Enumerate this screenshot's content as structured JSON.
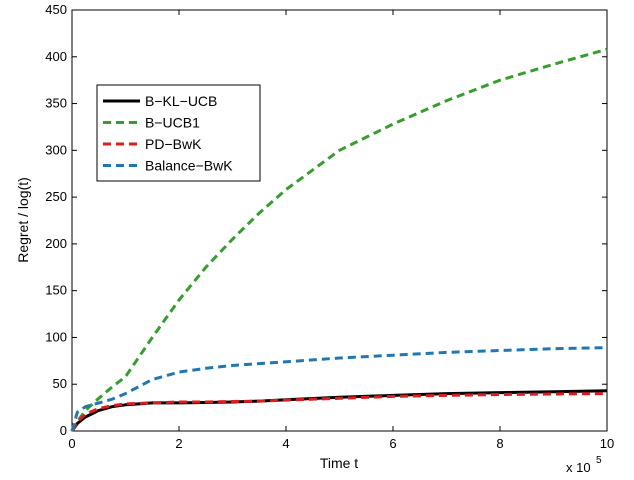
{
  "chart_data": {
    "type": "line",
    "title": "",
    "xlabel": "Time t",
    "ylabel": "Regret / log(t)",
    "x_multiplier_label": {
      "base": "x 10",
      "exponent": "5"
    },
    "xlim": [
      0,
      10
    ],
    "ylim": [
      0,
      450
    ],
    "xticks": [
      0,
      2,
      4,
      6,
      8,
      10
    ],
    "yticks": [
      0,
      50,
      100,
      150,
      200,
      250,
      300,
      350,
      400,
      450
    ],
    "grid": false,
    "legend_position": "upper-left",
    "x": [
      0,
      0.1,
      0.25,
      0.5,
      0.75,
      1,
      1.5,
      2,
      2.5,
      3,
      3.5,
      4,
      5,
      6,
      7,
      8,
      9,
      10
    ],
    "series": [
      {
        "name": "B−KL−UCB",
        "color": "#000000",
        "dash": "solid",
        "values": [
          0,
          8,
          15,
          22,
          26,
          28,
          30,
          30,
          30.5,
          31,
          32,
          33.5,
          36,
          38,
          40,
          41,
          42,
          43
        ]
      },
      {
        "name": "B−UCB1",
        "color": "#33a02c",
        "dash": "dashed",
        "values": [
          0,
          10,
          22,
          35,
          47,
          58,
          100,
          140,
          175,
          205,
          233,
          258,
          300,
          328,
          353,
          375,
          392,
          408
        ]
      },
      {
        "name": "PD−BwK",
        "color": "#e31a1c",
        "dash": "dashed",
        "values": [
          0,
          10,
          18,
          24,
          27,
          29,
          30,
          31,
          31,
          31.5,
          32,
          33,
          35,
          37,
          38,
          39,
          39.5,
          40
        ]
      },
      {
        "name": "Balance−BwK",
        "color": "#1f78b4",
        "dash": "dashed",
        "values": [
          0,
          20,
          26,
          30,
          34,
          40,
          55,
          63,
          67,
          70,
          72,
          74,
          78,
          81,
          84,
          86,
          88,
          89
        ]
      }
    ]
  }
}
